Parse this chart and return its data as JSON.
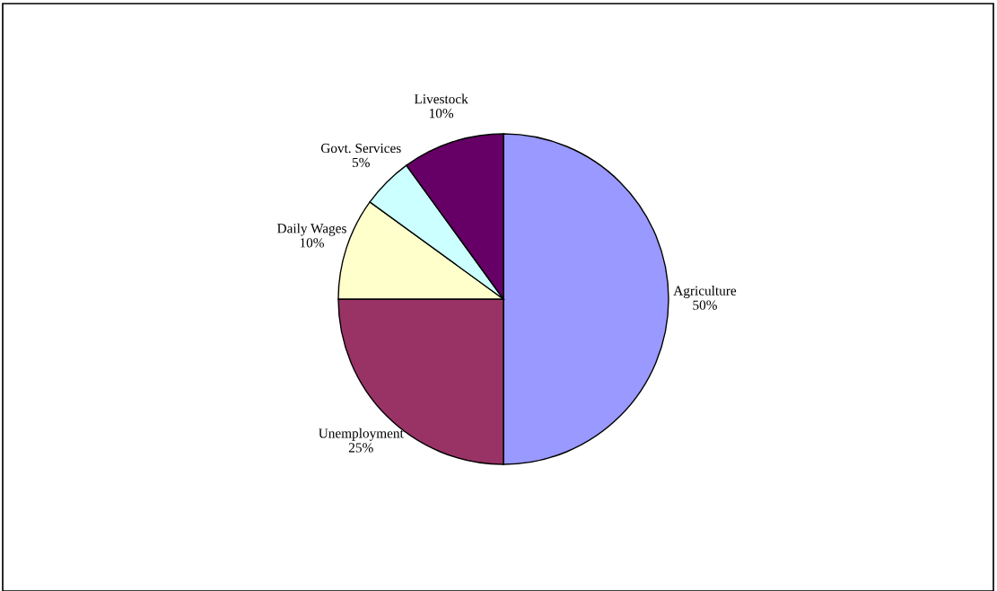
{
  "chart_data": {
    "type": "pie",
    "categories": [
      "Agriculture",
      "Unemployment",
      "Daily Wages",
      "Govt. Services",
      "Livestock"
    ],
    "values": [
      50,
      25,
      10,
      5,
      10
    ],
    "value_labels": [
      "50%",
      "25%",
      "10%",
      "5%",
      "10%"
    ],
    "colors": [
      "#9999ff",
      "#993366",
      "#ffffcc",
      "#ccffff",
      "#660066"
    ],
    "legend": false
  }
}
